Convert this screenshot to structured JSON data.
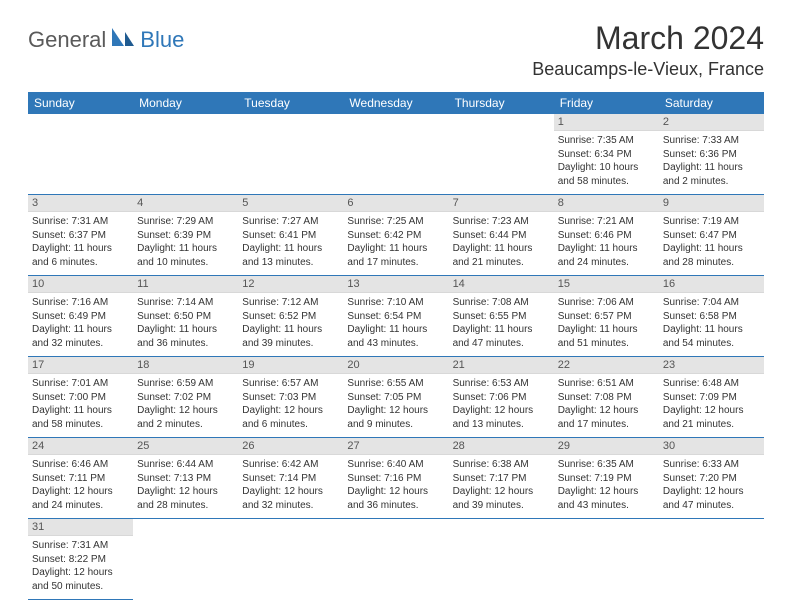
{
  "logo": {
    "part1": "General",
    "part2": "Blue"
  },
  "title": "March 2024",
  "location": "Beaucamps-le-Vieux, France",
  "colors": {
    "brand_blue": "#2f77b8",
    "logo_gray": "#5a5a5a",
    "daynum_bg": "#e4e4e4",
    "text": "#333333",
    "white": "#ffffff"
  },
  "weekdays": [
    "Sunday",
    "Monday",
    "Tuesday",
    "Wednesday",
    "Thursday",
    "Friday",
    "Saturday"
  ],
  "weeks": [
    [
      null,
      null,
      null,
      null,
      null,
      {
        "n": "1",
        "sr": "Sunrise: 7:35 AM",
        "ss": "Sunset: 6:34 PM",
        "dl1": "Daylight: 10 hours",
        "dl2": "and 58 minutes."
      },
      {
        "n": "2",
        "sr": "Sunrise: 7:33 AM",
        "ss": "Sunset: 6:36 PM",
        "dl1": "Daylight: 11 hours",
        "dl2": "and 2 minutes."
      }
    ],
    [
      {
        "n": "3",
        "sr": "Sunrise: 7:31 AM",
        "ss": "Sunset: 6:37 PM",
        "dl1": "Daylight: 11 hours",
        "dl2": "and 6 minutes."
      },
      {
        "n": "4",
        "sr": "Sunrise: 7:29 AM",
        "ss": "Sunset: 6:39 PM",
        "dl1": "Daylight: 11 hours",
        "dl2": "and 10 minutes."
      },
      {
        "n": "5",
        "sr": "Sunrise: 7:27 AM",
        "ss": "Sunset: 6:41 PM",
        "dl1": "Daylight: 11 hours",
        "dl2": "and 13 minutes."
      },
      {
        "n": "6",
        "sr": "Sunrise: 7:25 AM",
        "ss": "Sunset: 6:42 PM",
        "dl1": "Daylight: 11 hours",
        "dl2": "and 17 minutes."
      },
      {
        "n": "7",
        "sr": "Sunrise: 7:23 AM",
        "ss": "Sunset: 6:44 PM",
        "dl1": "Daylight: 11 hours",
        "dl2": "and 21 minutes."
      },
      {
        "n": "8",
        "sr": "Sunrise: 7:21 AM",
        "ss": "Sunset: 6:46 PM",
        "dl1": "Daylight: 11 hours",
        "dl2": "and 24 minutes."
      },
      {
        "n": "9",
        "sr": "Sunrise: 7:19 AM",
        "ss": "Sunset: 6:47 PM",
        "dl1": "Daylight: 11 hours",
        "dl2": "and 28 minutes."
      }
    ],
    [
      {
        "n": "10",
        "sr": "Sunrise: 7:16 AM",
        "ss": "Sunset: 6:49 PM",
        "dl1": "Daylight: 11 hours",
        "dl2": "and 32 minutes."
      },
      {
        "n": "11",
        "sr": "Sunrise: 7:14 AM",
        "ss": "Sunset: 6:50 PM",
        "dl1": "Daylight: 11 hours",
        "dl2": "and 36 minutes."
      },
      {
        "n": "12",
        "sr": "Sunrise: 7:12 AM",
        "ss": "Sunset: 6:52 PM",
        "dl1": "Daylight: 11 hours",
        "dl2": "and 39 minutes."
      },
      {
        "n": "13",
        "sr": "Sunrise: 7:10 AM",
        "ss": "Sunset: 6:54 PM",
        "dl1": "Daylight: 11 hours",
        "dl2": "and 43 minutes."
      },
      {
        "n": "14",
        "sr": "Sunrise: 7:08 AM",
        "ss": "Sunset: 6:55 PM",
        "dl1": "Daylight: 11 hours",
        "dl2": "and 47 minutes."
      },
      {
        "n": "15",
        "sr": "Sunrise: 7:06 AM",
        "ss": "Sunset: 6:57 PM",
        "dl1": "Daylight: 11 hours",
        "dl2": "and 51 minutes."
      },
      {
        "n": "16",
        "sr": "Sunrise: 7:04 AM",
        "ss": "Sunset: 6:58 PM",
        "dl1": "Daylight: 11 hours",
        "dl2": "and 54 minutes."
      }
    ],
    [
      {
        "n": "17",
        "sr": "Sunrise: 7:01 AM",
        "ss": "Sunset: 7:00 PM",
        "dl1": "Daylight: 11 hours",
        "dl2": "and 58 minutes."
      },
      {
        "n": "18",
        "sr": "Sunrise: 6:59 AM",
        "ss": "Sunset: 7:02 PM",
        "dl1": "Daylight: 12 hours",
        "dl2": "and 2 minutes."
      },
      {
        "n": "19",
        "sr": "Sunrise: 6:57 AM",
        "ss": "Sunset: 7:03 PM",
        "dl1": "Daylight: 12 hours",
        "dl2": "and 6 minutes."
      },
      {
        "n": "20",
        "sr": "Sunrise: 6:55 AM",
        "ss": "Sunset: 7:05 PM",
        "dl1": "Daylight: 12 hours",
        "dl2": "and 9 minutes."
      },
      {
        "n": "21",
        "sr": "Sunrise: 6:53 AM",
        "ss": "Sunset: 7:06 PM",
        "dl1": "Daylight: 12 hours",
        "dl2": "and 13 minutes."
      },
      {
        "n": "22",
        "sr": "Sunrise: 6:51 AM",
        "ss": "Sunset: 7:08 PM",
        "dl1": "Daylight: 12 hours",
        "dl2": "and 17 minutes."
      },
      {
        "n": "23",
        "sr": "Sunrise: 6:48 AM",
        "ss": "Sunset: 7:09 PM",
        "dl1": "Daylight: 12 hours",
        "dl2": "and 21 minutes."
      }
    ],
    [
      {
        "n": "24",
        "sr": "Sunrise: 6:46 AM",
        "ss": "Sunset: 7:11 PM",
        "dl1": "Daylight: 12 hours",
        "dl2": "and 24 minutes."
      },
      {
        "n": "25",
        "sr": "Sunrise: 6:44 AM",
        "ss": "Sunset: 7:13 PM",
        "dl1": "Daylight: 12 hours",
        "dl2": "and 28 minutes."
      },
      {
        "n": "26",
        "sr": "Sunrise: 6:42 AM",
        "ss": "Sunset: 7:14 PM",
        "dl1": "Daylight: 12 hours",
        "dl2": "and 32 minutes."
      },
      {
        "n": "27",
        "sr": "Sunrise: 6:40 AM",
        "ss": "Sunset: 7:16 PM",
        "dl1": "Daylight: 12 hours",
        "dl2": "and 36 minutes."
      },
      {
        "n": "28",
        "sr": "Sunrise: 6:38 AM",
        "ss": "Sunset: 7:17 PM",
        "dl1": "Daylight: 12 hours",
        "dl2": "and 39 minutes."
      },
      {
        "n": "29",
        "sr": "Sunrise: 6:35 AM",
        "ss": "Sunset: 7:19 PM",
        "dl1": "Daylight: 12 hours",
        "dl2": "and 43 minutes."
      },
      {
        "n": "30",
        "sr": "Sunrise: 6:33 AM",
        "ss": "Sunset: 7:20 PM",
        "dl1": "Daylight: 12 hours",
        "dl2": "and 47 minutes."
      }
    ],
    [
      {
        "n": "31",
        "sr": "Sunrise: 7:31 AM",
        "ss": "Sunset: 8:22 PM",
        "dl1": "Daylight: 12 hours",
        "dl2": "and 50 minutes."
      },
      null,
      null,
      null,
      null,
      null,
      null
    ]
  ]
}
